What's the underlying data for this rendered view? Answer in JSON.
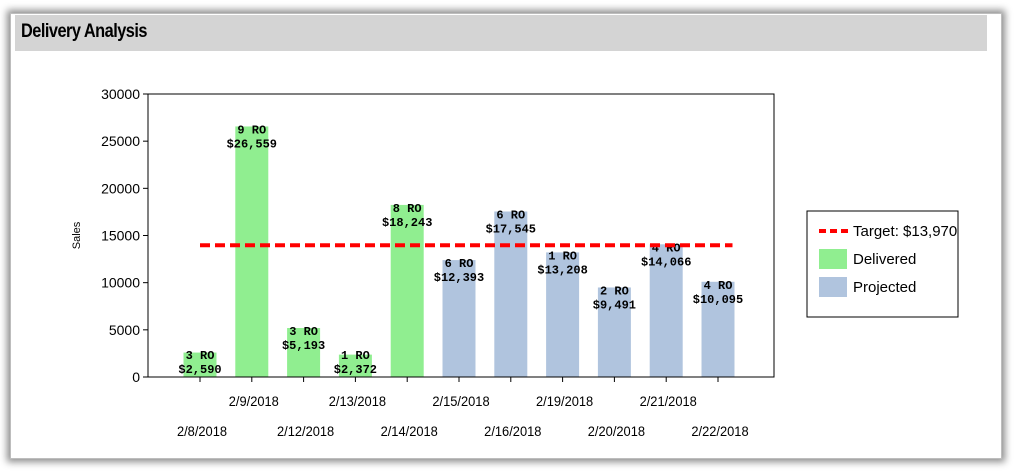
{
  "panel": {
    "title": "Delivery Analysis"
  },
  "chart_data": {
    "type": "bar",
    "ylabel": "Sales",
    "ylim": [
      0,
      30000
    ],
    "yticks": [
      0,
      5000,
      10000,
      15000,
      20000,
      25000,
      30000
    ],
    "categories": [
      "2/8/2018",
      "2/9/2018",
      "2/12/2018",
      "2/13/2018",
      "2/14/2018",
      "2/15/2018",
      "2/16/2018",
      "2/19/2018",
      "2/20/2018",
      "2/21/2018",
      "2/22/2018"
    ],
    "values": [
      2590,
      26559,
      5193,
      2372,
      18243,
      12393,
      17545,
      13208,
      9491,
      14066,
      10095
    ],
    "bar_status": [
      "Delivered",
      "Delivered",
      "Delivered",
      "Delivered",
      "Delivered",
      "Projected",
      "Projected",
      "Projected",
      "Projected",
      "Projected",
      "Projected"
    ],
    "ro_labels": [
      "3 RO",
      "9 RO",
      "3 RO",
      "1 RO",
      "8 RO",
      "6 RO",
      "6 RO",
      "1 RO",
      "2 RO",
      "4 RO",
      "4 RO"
    ],
    "value_labels": [
      "$2,590",
      "$26,559",
      "$5,193",
      "$2,372",
      "$18,243",
      "$12,393",
      "$17,545",
      "$13,208",
      "$9,491",
      "$14,066",
      "$10,095"
    ],
    "target": {
      "value": 13970,
      "label": "Target: $13,970"
    },
    "legend": {
      "position": "right",
      "items": [
        {
          "key": "target",
          "label": "Target: $13,970",
          "color": "#ff0000",
          "style": "dashed-line"
        },
        {
          "key": "Delivered",
          "label": "Delivered",
          "color": "#90ee90",
          "style": "box"
        },
        {
          "key": "Projected",
          "label": "Projected",
          "color": "#b0c4de",
          "style": "box"
        }
      ]
    },
    "colors": {
      "Delivered": "#90ee90",
      "Projected": "#b0c4de",
      "target": "#ff0000"
    },
    "grid": false
  }
}
